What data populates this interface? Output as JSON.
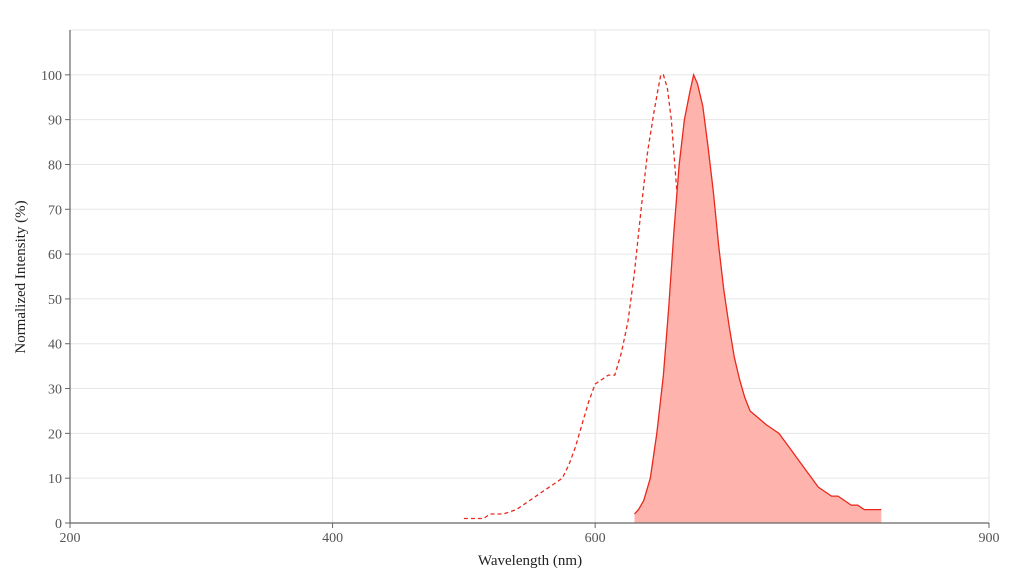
{
  "chart_data": {
    "type": "line",
    "title": "",
    "xlabel": "Wavelength (nm)",
    "ylabel": "Normalized Intensity (%)",
    "xlim": [
      200,
      900
    ],
    "ylim": [
      0,
      110
    ],
    "x_ticks": [
      200,
      400,
      600,
      900
    ],
    "y_ticks": [
      0,
      10,
      20,
      30,
      40,
      50,
      60,
      70,
      80,
      90,
      100
    ],
    "x_tick_labels": [
      "200",
      "400",
      "600",
      "900"
    ],
    "y_tick_labels": [
      "0",
      "10",
      "20",
      "30",
      "40",
      "50",
      "60",
      "70",
      "80",
      "90",
      "100"
    ],
    "grid": true,
    "colors": {
      "line": "#e8291c",
      "fill": "#ffb3ad"
    },
    "series": [
      {
        "style": "dashed",
        "filled": false,
        "points": [
          [
            500,
            1
          ],
          [
            515,
            1
          ],
          [
            520,
            2
          ],
          [
            530,
            2
          ],
          [
            540,
            3
          ],
          [
            550,
            5
          ],
          [
            560,
            7
          ],
          [
            570,
            9
          ],
          [
            575,
            10
          ],
          [
            580,
            13
          ],
          [
            585,
            17
          ],
          [
            590,
            22
          ],
          [
            595,
            27
          ],
          [
            600,
            31
          ],
          [
            605,
            32
          ],
          [
            610,
            33
          ],
          [
            615,
            33
          ],
          [
            620,
            38
          ],
          [
            625,
            45
          ],
          [
            630,
            56
          ],
          [
            635,
            70
          ],
          [
            640,
            83
          ],
          [
            645,
            92
          ],
          [
            648,
            97
          ],
          [
            650,
            100
          ],
          [
            652,
            100
          ],
          [
            655,
            97
          ],
          [
            658,
            90
          ],
          [
            662,
            75
          ],
          [
            666,
            60
          ],
          [
            670,
            45
          ],
          [
            673,
            32
          ],
          [
            677,
            22
          ],
          [
            681,
            14
          ],
          [
            685,
            8
          ],
          [
            690,
            5
          ],
          [
            695,
            4
          ],
          [
            700,
            3
          ],
          [
            703,
            2
          ]
        ]
      },
      {
        "style": "solid",
        "filled": true,
        "points": [
          [
            630,
            2
          ],
          [
            633,
            3
          ],
          [
            637,
            5
          ],
          [
            642,
            10
          ],
          [
            647,
            20
          ],
          [
            652,
            33
          ],
          [
            656,
            48
          ],
          [
            660,
            65
          ],
          [
            664,
            80
          ],
          [
            668,
            90
          ],
          [
            672,
            96
          ],
          [
            675,
            100
          ],
          [
            678,
            98
          ],
          [
            682,
            93
          ],
          [
            686,
            84
          ],
          [
            690,
            74
          ],
          [
            694,
            62
          ],
          [
            698,
            52
          ],
          [
            702,
            44
          ],
          [
            706,
            37
          ],
          [
            710,
            32
          ],
          [
            714,
            28
          ],
          [
            718,
            25
          ],
          [
            722,
            24
          ],
          [
            726,
            23
          ],
          [
            730,
            22
          ],
          [
            735,
            21
          ],
          [
            740,
            20
          ],
          [
            745,
            18
          ],
          [
            750,
            16
          ],
          [
            755,
            14
          ],
          [
            760,
            12
          ],
          [
            765,
            10
          ],
          [
            770,
            8
          ],
          [
            775,
            7
          ],
          [
            780,
            6
          ],
          [
            785,
            6
          ],
          [
            790,
            5
          ],
          [
            795,
            4
          ],
          [
            800,
            4
          ],
          [
            805,
            3
          ],
          [
            810,
            3
          ],
          [
            815,
            3
          ],
          [
            818,
            3
          ]
        ]
      }
    ]
  }
}
